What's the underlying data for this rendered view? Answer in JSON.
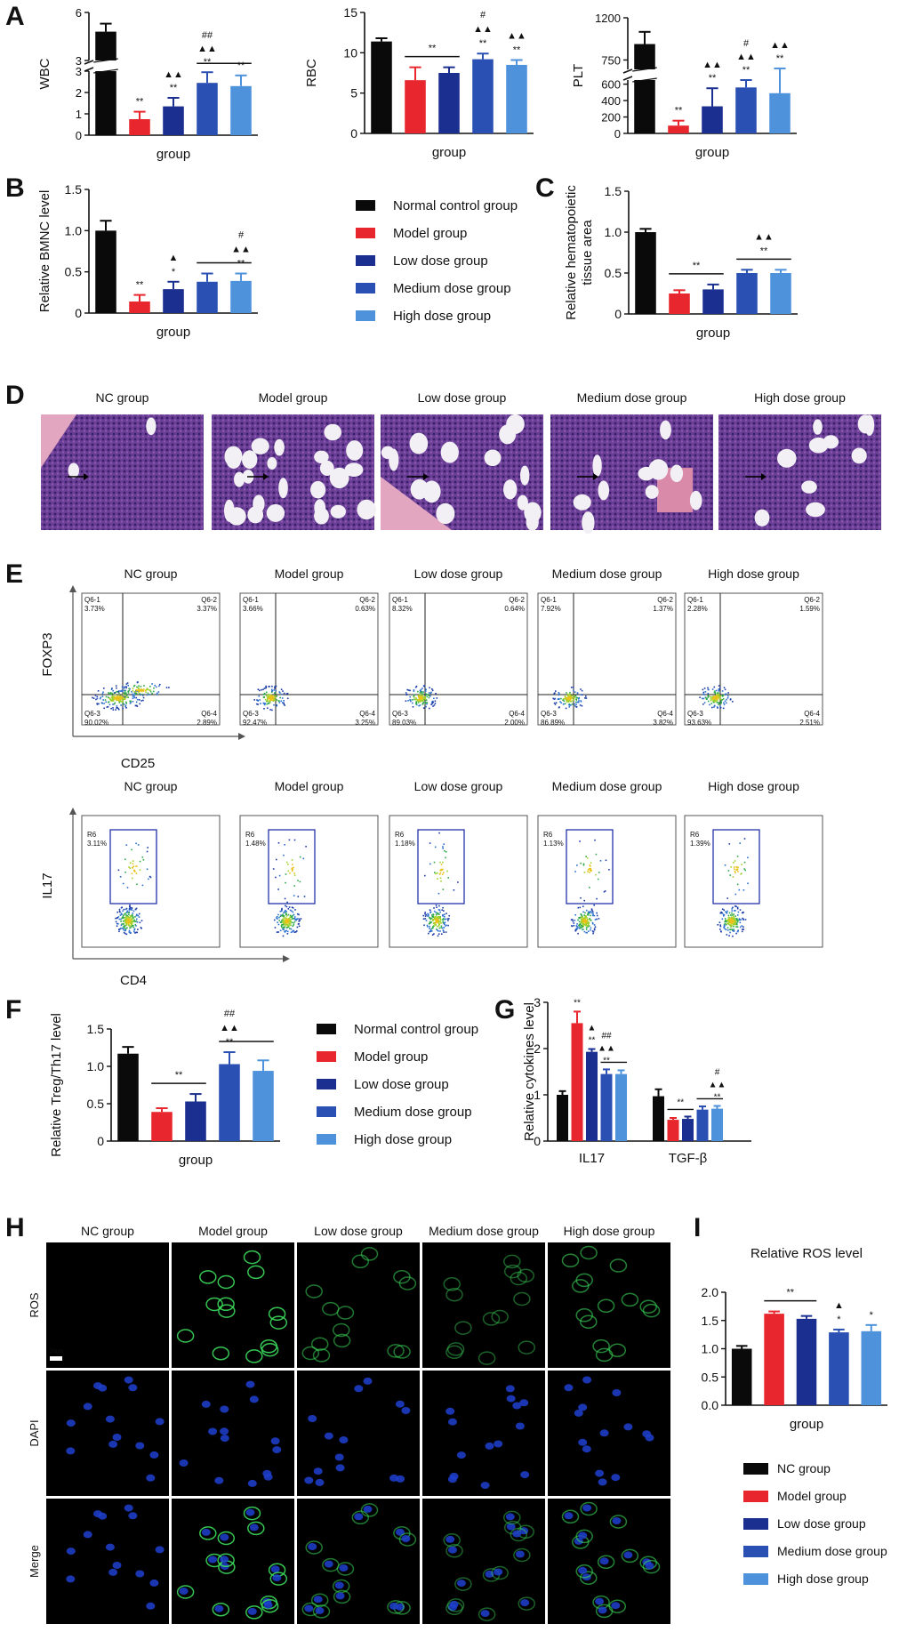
{
  "colors": {
    "black": "#0a0a0a",
    "red": "#e8262d",
    "navy": "#1a2f8f",
    "medium": "#2a50b4",
    "light": "#4f92dc",
    "axis": "#111111",
    "gate_blue": "#2233aa"
  },
  "panel_letters": [
    "A",
    "B",
    "C",
    "D",
    "E",
    "F",
    "G",
    "H",
    "I"
  ],
  "groups_long": [
    "Normal control group",
    "Model group",
    "Low dose group",
    "Medium dose group",
    "High dose group"
  ],
  "groups_short": [
    "NC group",
    "Model group",
    "Low dose group",
    "Medium dose group",
    "High dose group"
  ],
  "microscopy": {
    "staining_rows": [
      "ROS",
      "DAPI",
      "Merge"
    ],
    "scale_bar": "20μm"
  },
  "flow": {
    "foxp3_axis_y": "FOXP3",
    "foxp3_axis_x": "CD25",
    "il17_axis_y": "IL17",
    "il17_axis_x": "CD4",
    "quad_labels": [
      "Q6-1",
      "Q6-2",
      "Q6-3",
      "Q6-4"
    ],
    "foxp3_values": [
      [
        "3.73%",
        "3.37%",
        "90.02%",
        "2.89%"
      ],
      [
        "3.66%",
        "0.63%",
        "92.47%",
        "3.25%"
      ],
      [
        "8.32%",
        "0.64%",
        "89.03%",
        "2.00%"
      ],
      [
        "7.92%",
        "1.37%",
        "86.89%",
        "3.82%"
      ],
      [
        "2.28%",
        "1.59%",
        "93.63%",
        "2.51%"
      ]
    ],
    "gate_label": "R6",
    "il17_values": [
      "3.11%",
      "1.48%",
      "1.18%",
      "1.13%",
      "1.39%"
    ]
  },
  "chart_data": [
    {
      "id": "A-WBC",
      "type": "bar",
      "ylabel": "WBC",
      "xlabel": "group",
      "categories": [
        "Normal control group",
        "Model group",
        "Low dose group",
        "Medium dose group",
        "High dose group"
      ],
      "values": [
        4.8,
        0.75,
        1.35,
        2.45,
        2.3
      ],
      "errors": [
        0.5,
        0.35,
        0.4,
        0.5,
        0.5
      ],
      "axis_break": true,
      "yticks_lower": [
        "0",
        "1",
        "2",
        "3"
      ],
      "yticks_upper": [
        "3",
        "6"
      ],
      "annotations": [
        [],
        [
          "**"
        ],
        [
          "▲▲",
          "**"
        ],
        [
          "##",
          "▲▲",
          "**"
        ],
        [
          "**"
        ]
      ],
      "sig_lines": [
        [
          3,
          4
        ]
      ]
    },
    {
      "id": "A-RBC",
      "type": "bar",
      "ylabel": "RBC",
      "xlabel": "group",
      "categories": [
        "Normal control group",
        "Model group",
        "Low dose group",
        "Medium dose group",
        "High dose group"
      ],
      "values": [
        11.4,
        6.6,
        7.5,
        9.2,
        8.5
      ],
      "errors": [
        0.4,
        1.6,
        0.7,
        0.7,
        0.6
      ],
      "ylim": [
        0,
        15
      ],
      "yticks": [
        0,
        5,
        10,
        15
      ],
      "annotations": [
        [],
        [],
        [],
        [
          "#",
          "▲▲",
          "**"
        ],
        [
          "▲▲",
          "**"
        ]
      ],
      "sig_lines": [
        [
          1,
          2,
          "**"
        ]
      ]
    },
    {
      "id": "A-PLT",
      "type": "bar",
      "ylabel": "PLT",
      "xlabel": "group",
      "categories": [
        "Normal control group",
        "Model group",
        "Low dose group",
        "Medium dose group",
        "High dose group"
      ],
      "values": [
        920,
        95,
        330,
        560,
        490
      ],
      "errors": [
        130,
        60,
        220,
        90,
        170
      ],
      "axis_break": true,
      "yticks_lower": [
        "0",
        "200",
        "400",
        "600"
      ],
      "yticks_upper": [
        "750",
        "1200"
      ],
      "annotations": [
        [],
        [
          "**"
        ],
        [
          "▲▲",
          "**"
        ],
        [
          "#",
          "▲▲",
          "**"
        ],
        [
          "▲▲",
          "**"
        ]
      ],
      "sig_lines": []
    },
    {
      "id": "B",
      "type": "bar",
      "ylabel": "Relative BMNC level",
      "xlabel": "group",
      "categories": [
        "Normal control group",
        "Model group",
        "Low dose group",
        "Medium dose group",
        "High dose group"
      ],
      "values": [
        1.0,
        0.14,
        0.29,
        0.38,
        0.39
      ],
      "errors": [
        0.12,
        0.08,
        0.09,
        0.1,
        0.09
      ],
      "ylim": [
        0,
        1.5
      ],
      "yticks": [
        "0",
        "0.5",
        "1.0",
        "1.5"
      ],
      "annotations": [
        [],
        [
          "**"
        ],
        [
          "▲",
          "*"
        ],
        [],
        [
          "#",
          "▲▲",
          "**"
        ]
      ],
      "sig_lines": [
        [
          3,
          4
        ]
      ]
    },
    {
      "id": "C",
      "type": "bar",
      "ylabel": "Relative hematopoietic tissue area",
      "xlabel": "group",
      "categories": [
        "Normal control group",
        "Model group",
        "Low dose group",
        "Medium dose group",
        "High dose group"
      ],
      "values": [
        1.0,
        0.25,
        0.3,
        0.5,
        0.5
      ],
      "errors": [
        0.04,
        0.04,
        0.06,
        0.04,
        0.04
      ],
      "ylim": [
        0,
        1.5
      ],
      "yticks": [
        "0",
        "0.5",
        "1.0",
        "1.5"
      ],
      "annotations": [
        [],
        [],
        [],
        [],
        []
      ],
      "sig_lines": [
        [
          1,
          2,
          "**"
        ],
        [
          3,
          4,
          "▲▲|**"
        ]
      ]
    },
    {
      "id": "F",
      "type": "bar",
      "ylabel": "Relative Treg/Th17 level",
      "xlabel": "group",
      "categories": [
        "Normal control group",
        "Model group",
        "Low dose group",
        "Medium dose group",
        "High dose group"
      ],
      "values": [
        1.17,
        0.39,
        0.53,
        1.03,
        0.94
      ],
      "errors": [
        0.09,
        0.05,
        0.1,
        0.16,
        0.14
      ],
      "ylim": [
        0,
        1.5
      ],
      "yticks": [
        "0",
        "0.5",
        "1.0",
        "1.5"
      ],
      "annotations": [
        [],
        [],
        [],
        [
          "##",
          "▲▲",
          "**"
        ],
        []
      ],
      "sig_lines": [
        [
          1,
          2,
          "**"
        ],
        [
          3,
          4
        ]
      ]
    },
    {
      "id": "G",
      "type": "bar",
      "ylabel": "Relative cytokines level",
      "xlabel": "",
      "categories": [
        "IL17",
        "TGF-β"
      ],
      "series": [
        {
          "name": "Normal control group",
          "values": [
            1.0,
            0.97
          ],
          "errors": [
            0.08,
            0.15
          ]
        },
        {
          "name": "Model group",
          "values": [
            2.55,
            0.46
          ],
          "errors": [
            0.25,
            0.04
          ]
        },
        {
          "name": "Low dose group",
          "values": [
            1.93,
            0.48
          ],
          "errors": [
            0.06,
            0.05
          ]
        },
        {
          "name": "Medium dose group",
          "values": [
            1.45,
            0.68
          ],
          "errors": [
            0.1,
            0.07
          ]
        },
        {
          "name": "High dose group",
          "values": [
            1.45,
            0.7
          ],
          "errors": [
            0.08,
            0.06
          ]
        }
      ],
      "ylim": [
        0,
        3
      ],
      "yticks": [
        0,
        1,
        2,
        3
      ],
      "annotations": [
        [
          [],
          [
            "**"
          ],
          [
            "▲",
            "**"
          ],
          [
            "##",
            "▲▲",
            "**"
          ],
          []
        ],
        [
          [],
          [],
          [],
          [],
          [
            "#",
            "▲▲",
            "**"
          ]
        ]
      ],
      "sig_lines": [
        [
          0,
          3,
          4
        ],
        [
          1,
          1,
          2,
          "**"
        ],
        [
          1,
          3,
          4
        ]
      ]
    },
    {
      "id": "I",
      "type": "bar",
      "title": "Relative ROS  level",
      "ylabel": "",
      "xlabel": "group",
      "categories": [
        "NC group",
        "Model group",
        "Low dose group",
        "Medium dose group",
        "High dose group"
      ],
      "values": [
        1.0,
        1.62,
        1.53,
        1.29,
        1.31
      ],
      "errors": [
        0.05,
        0.04,
        0.05,
        0.05,
        0.11
      ],
      "ylim": [
        0,
        2.0
      ],
      "yticks": [
        "0.0",
        "0.5",
        "1.0",
        "1.5",
        "2.0"
      ],
      "annotations": [
        [],
        [],
        [],
        [
          "▲",
          "*"
        ],
        [
          "*"
        ]
      ],
      "sig_lines": [
        [
          1,
          2,
          "**"
        ]
      ]
    }
  ]
}
